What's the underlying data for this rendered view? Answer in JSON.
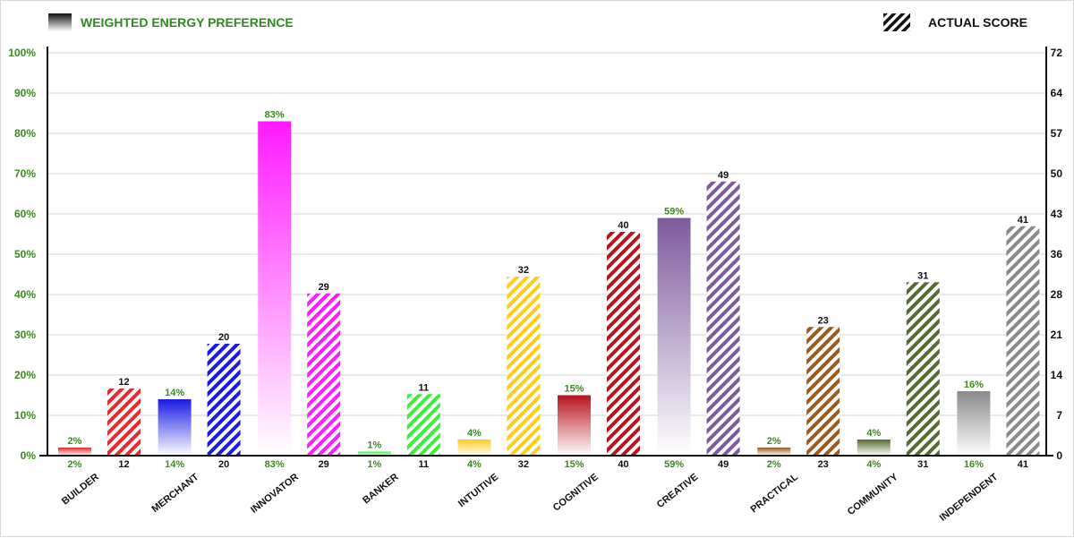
{
  "chart_data": {
    "type": "bar",
    "legend": {
      "preference_label": "WEIGHTED ENERGY PREFERENCE",
      "score_label": "ACTUAL SCORE",
      "preference_color": "#2e8b1e"
    },
    "left_axis": {
      "ticks": [
        "0%",
        "10%",
        "20%",
        "30%",
        "40%",
        "50%",
        "60%",
        "70%",
        "80%",
        "90%",
        "100%"
      ],
      "ylim": [
        0,
        100
      ]
    },
    "right_axis": {
      "ticks": [
        "0",
        "7",
        "14",
        "21",
        "28",
        "36",
        "43",
        "50",
        "57",
        "64",
        "72"
      ],
      "ylim": [
        0,
        72
      ]
    },
    "categories": [
      "BUILDER",
      "MERCHANT",
      "INNOVATOR",
      "BANKER",
      "INTUITIVE",
      "COGNITIVE",
      "CREATIVE",
      "PRACTICAL",
      "COMMUNITY",
      "INDEPENDENT"
    ],
    "series": [
      {
        "name": "WEIGHTED ENERGY PREFERENCE",
        "values": [
          2,
          14,
          83,
          1,
          4,
          15,
          59,
          2,
          4,
          16
        ],
        "labels": [
          "2%",
          "14%",
          "83%",
          "1%",
          "4%",
          "15%",
          "59%",
          "2%",
          "4%",
          "16%"
        ]
      },
      {
        "name": "ACTUAL SCORE",
        "values": [
          12,
          20,
          29,
          11,
          32,
          40,
          49,
          23,
          31,
          41
        ],
        "labels": [
          "12",
          "20",
          "29",
          "11",
          "32",
          "40",
          "49",
          "23",
          "31",
          "41"
        ]
      }
    ],
    "colors": [
      "#e8292e",
      "#1a1ae6",
      "#ff1aff",
      "#3aef3a",
      "#ffcc1a",
      "#b8141e",
      "#7d5a9e",
      "#9b5a1e",
      "#556b2f",
      "#8a8a8a"
    ],
    "grid": true
  }
}
